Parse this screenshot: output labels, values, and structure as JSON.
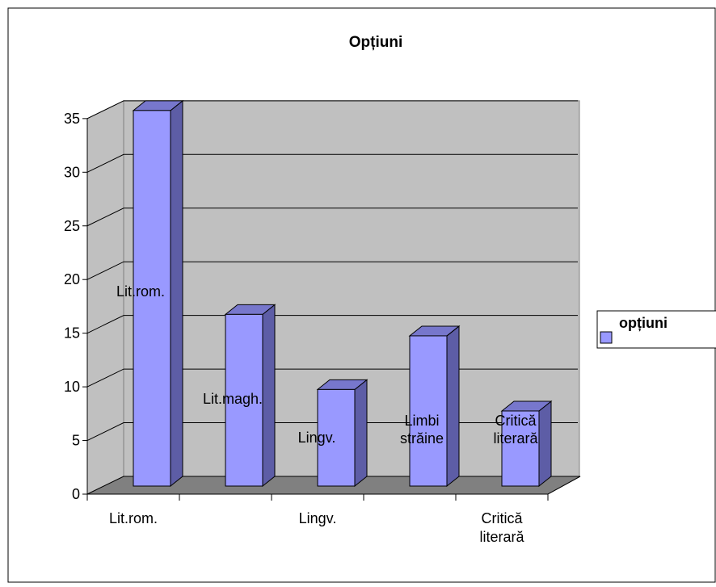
{
  "chart_data": {
    "type": "bar",
    "title": "Opțiuni",
    "categories": [
      "Lit.rom.",
      "Lit.magh.",
      "Lingv.",
      "Limbi străine",
      "Critică literară"
    ],
    "series": [
      {
        "name": "opțiuni",
        "values": [
          35,
          16,
          9,
          14,
          7
        ],
        "color": "#9999ff"
      }
    ],
    "axis_tick_labels": [
      "Lit.rom.",
      "",
      "Lingv.",
      "",
      "Critică literară"
    ],
    "bar_labels": [
      "Lit.rom.",
      "Lit.magh.",
      "Lingv.",
      "Limbi străine",
      "Critică literară"
    ],
    "y_ticks": [
      "0",
      "5",
      "10",
      "15",
      "20",
      "25",
      "30",
      "35"
    ],
    "ylim": [
      0,
      35
    ],
    "grid": true,
    "legend_position": "right",
    "style": "3d-column",
    "colors": {
      "wall": "#c0c0c0",
      "floor": "#808080",
      "bar_front": "#9999ff",
      "bar_side": "#5d5da6",
      "bar_top": "#7777cc"
    }
  }
}
